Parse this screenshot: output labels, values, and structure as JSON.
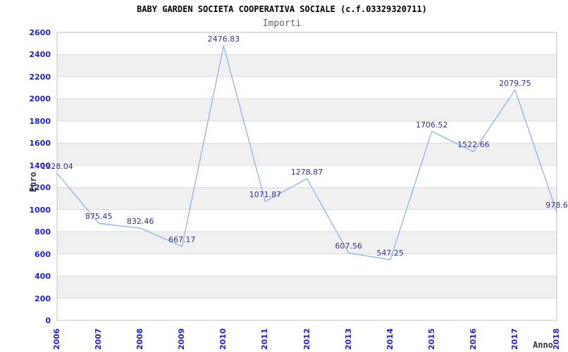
{
  "chart_data": {
    "type": "line",
    "title": "BABY GARDEN SOCIETA COOPERATIVA SOCIALE (c.f.03329320711)",
    "subtitle": "Importi",
    "xlabel": "Anno",
    "ylabel": "Euro",
    "categories": [
      "2006",
      "2007",
      "2008",
      "2009",
      "2010",
      "2011",
      "2012",
      "2013",
      "2014",
      "2015",
      "2016",
      "2017",
      "2018"
    ],
    "values": [
      1328.04,
      875.45,
      832.46,
      667.17,
      2476.83,
      1071.87,
      1278.87,
      607.56,
      547.25,
      1706.52,
      1522.66,
      2079.75,
      978.6
    ],
    "point_labels": [
      "1328.04",
      "875.45",
      "832.46",
      "667.17",
      "2476.83",
      "1071.87",
      "1278.87",
      "607.56",
      "547.25",
      "1706.52",
      "1522.66",
      "2079.75",
      "978.6"
    ],
    "ylim": [
      0,
      2600
    ],
    "ytick_step": 200,
    "grid": "horizontal gridlines with alternating background bands",
    "legend": "none",
    "colors": {
      "line": "#8ab4e8",
      "point_label": "#333388",
      "tick_label": "#2222cc",
      "band": "#f0f0f0",
      "gridline": "#d9d9d9",
      "plot_border": "#c0c0c0",
      "title": "#000000",
      "subtitle": "#666666",
      "axis_title": "#333333",
      "background": "#ffffff"
    }
  }
}
